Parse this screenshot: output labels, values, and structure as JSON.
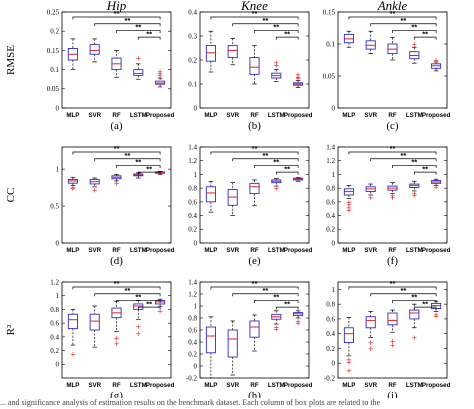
{
  "colors": {
    "box": "#2a2ad6",
    "median": "#e02020",
    "outlier": "#e02020",
    "whisker": "#000000"
  },
  "categories": [
    "MLP",
    "SVR",
    "RF",
    "LSTM",
    "Proposed"
  ],
  "column_titles": [
    "Hip",
    "Knee",
    "Ankle"
  ],
  "row_labels": [
    "RMSE",
    "CC",
    "R2"
  ],
  "significance_label": "**",
  "caption": "... and significance analysis of estimation results on the benchmark dataset. Each column of box plots are related to the",
  "chart_data": [
    {
      "type": "box",
      "panel_label": "(a)",
      "title": "Hip",
      "ylabel": "RMSE",
      "ylim": [
        0,
        0.25
      ],
      "yticks": [
        "0",
        "0.05",
        "0.1",
        "0.15",
        "0.2",
        "0.25"
      ],
      "boxes": [
        {
          "category": "MLP",
          "min": 0.1,
          "q1": 0.125,
          "median": 0.14,
          "q3": 0.155,
          "max": 0.18,
          "outliers": []
        },
        {
          "category": "SVR",
          "min": 0.12,
          "q1": 0.14,
          "median": 0.15,
          "q3": 0.165,
          "max": 0.18,
          "outliers": []
        },
        {
          "category": "RF",
          "min": 0.08,
          "q1": 0.1,
          "median": 0.115,
          "q3": 0.13,
          "max": 0.15,
          "outliers": []
        },
        {
          "category": "LSTM",
          "min": 0.075,
          "q1": 0.085,
          "median": 0.09,
          "q3": 0.1,
          "max": 0.115,
          "outliers": [
            0.13
          ]
        },
        {
          "category": "Proposed",
          "min": 0.055,
          "q1": 0.062,
          "median": 0.065,
          "q3": 0.07,
          "max": 0.078,
          "outliers": [
            0.085,
            0.09,
            0.095
          ]
        }
      ]
    },
    {
      "type": "box",
      "panel_label": "(b)",
      "title": "Knee",
      "ylabel": "",
      "ylim": [
        0,
        0.4
      ],
      "yticks": [
        "0",
        "0.1",
        "0.2",
        "0.3",
        "0.4"
      ],
      "boxes": [
        {
          "category": "MLP",
          "min": 0.15,
          "q1": 0.195,
          "median": 0.23,
          "q3": 0.26,
          "max": 0.32,
          "outliers": []
        },
        {
          "category": "SVR",
          "min": 0.18,
          "q1": 0.21,
          "median": 0.24,
          "q3": 0.26,
          "max": 0.29,
          "outliers": []
        },
        {
          "category": "RF",
          "min": 0.1,
          "q1": 0.14,
          "median": 0.17,
          "q3": 0.21,
          "max": 0.26,
          "outliers": []
        },
        {
          "category": "LSTM",
          "min": 0.11,
          "q1": 0.125,
          "median": 0.135,
          "q3": 0.145,
          "max": 0.16,
          "outliers": [
            0.18,
            0.19
          ]
        },
        {
          "category": "Proposed",
          "min": 0.085,
          "q1": 0.095,
          "median": 0.1,
          "q3": 0.105,
          "max": 0.115,
          "outliers": [
            0.125,
            0.13,
            0.14
          ]
        }
      ]
    },
    {
      "type": "box",
      "panel_label": "(c)",
      "title": "Ankle",
      "ylabel": "",
      "ylim": [
        0,
        0.15
      ],
      "yticks": [
        "0",
        "0.05",
        "0.1",
        "0.15"
      ],
      "boxes": [
        {
          "category": "MLP",
          "min": 0.095,
          "q1": 0.102,
          "median": 0.108,
          "q3": 0.115,
          "max": 0.12,
          "outliers": []
        },
        {
          "category": "SVR",
          "min": 0.085,
          "q1": 0.092,
          "median": 0.098,
          "q3": 0.105,
          "max": 0.12,
          "outliers": []
        },
        {
          "category": "RF",
          "min": 0.075,
          "q1": 0.085,
          "median": 0.092,
          "q3": 0.1,
          "max": 0.11,
          "outliers": []
        },
        {
          "category": "LSTM",
          "min": 0.07,
          "q1": 0.077,
          "median": 0.082,
          "q3": 0.088,
          "max": 0.095,
          "outliers": [
            0.1
          ]
        },
        {
          "category": "Proposed",
          "min": 0.058,
          "q1": 0.062,
          "median": 0.066,
          "q3": 0.069,
          "max": 0.072,
          "outliers": [
            0.075
          ]
        }
      ]
    },
    {
      "type": "box",
      "panel_label": "(d)",
      "title": "",
      "ylabel": "CC",
      "ylim": [
        0,
        1.3
      ],
      "yticks": [
        "0",
        "0.5",
        "1"
      ],
      "boxes": [
        {
          "category": "MLP",
          "min": 0.78,
          "q1": 0.81,
          "median": 0.84,
          "q3": 0.86,
          "max": 0.89,
          "outliers": [
            0.74,
            0.75
          ]
        },
        {
          "category": "SVR",
          "min": 0.76,
          "q1": 0.8,
          "median": 0.83,
          "q3": 0.86,
          "max": 0.88,
          "outliers": [
            0.72
          ]
        },
        {
          "category": "RF",
          "min": 0.84,
          "q1": 0.87,
          "median": 0.89,
          "q3": 0.91,
          "max": 0.93,
          "outliers": [
            0.81
          ]
        },
        {
          "category": "LSTM",
          "min": 0.88,
          "q1": 0.91,
          "median": 0.92,
          "q3": 0.935,
          "max": 0.95,
          "outliers": []
        },
        {
          "category": "Proposed",
          "min": 0.93,
          "q1": 0.945,
          "median": 0.955,
          "q3": 0.962,
          "max": 0.97,
          "outliers": []
        }
      ]
    },
    {
      "type": "box",
      "panel_label": "(e)",
      "title": "",
      "ylabel": "",
      "ylim": [
        0,
        1.4
      ],
      "yticks": [
        "0",
        "0.2",
        "0.4",
        "0.6",
        "0.8",
        "1",
        "1.2",
        "1.4"
      ],
      "boxes": [
        {
          "category": "MLP",
          "min": 0.45,
          "q1": 0.6,
          "median": 0.73,
          "q3": 0.82,
          "max": 0.9,
          "outliers": []
        },
        {
          "category": "SVR",
          "min": 0.4,
          "q1": 0.55,
          "median": 0.67,
          "q3": 0.78,
          "max": 0.88,
          "outliers": []
        },
        {
          "category": "RF",
          "min": 0.55,
          "q1": 0.72,
          "median": 0.82,
          "q3": 0.87,
          "max": 0.92,
          "outliers": []
        },
        {
          "category": "LSTM",
          "min": 0.83,
          "q1": 0.88,
          "median": 0.9,
          "q3": 0.92,
          "max": 0.94,
          "outliers": [
            0.8
          ]
        },
        {
          "category": "Proposed",
          "min": 0.9,
          "q1": 0.92,
          "median": 0.935,
          "q3": 0.945,
          "max": 0.955,
          "outliers": []
        }
      ]
    },
    {
      "type": "box",
      "panel_label": "(f)",
      "title": "",
      "ylabel": "",
      "ylim": [
        0,
        1.4
      ],
      "yticks": [
        "0",
        "0.2",
        "0.4",
        "0.6",
        "0.8",
        "1",
        "1.2",
        "1.4"
      ],
      "boxes": [
        {
          "category": "MLP",
          "min": 0.65,
          "q1": 0.7,
          "median": 0.75,
          "q3": 0.79,
          "max": 0.84,
          "outliers": [
            0.48,
            0.52,
            0.56,
            0.6
          ]
        },
        {
          "category": "SVR",
          "min": 0.7,
          "q1": 0.75,
          "median": 0.79,
          "q3": 0.82,
          "max": 0.86,
          "outliers": [
            0.66
          ]
        },
        {
          "category": "RF",
          "min": 0.72,
          "q1": 0.77,
          "median": 0.8,
          "q3": 0.83,
          "max": 0.88,
          "outliers": [
            0.66,
            0.69
          ]
        },
        {
          "category": "LSTM",
          "min": 0.76,
          "q1": 0.81,
          "median": 0.84,
          "q3": 0.86,
          "max": 0.9,
          "outliers": [
            0.7,
            0.73
          ]
        },
        {
          "category": "Proposed",
          "min": 0.84,
          "q1": 0.87,
          "median": 0.89,
          "q3": 0.91,
          "max": 0.93,
          "outliers": [
            0.82
          ]
        }
      ]
    },
    {
      "type": "box",
      "panel_label": "(g)",
      "title": "",
      "ylabel": "R²",
      "ylim": [
        -0.2,
        1.2
      ],
      "yticks": [
        "0",
        "0.2",
        "0.4",
        "0.6",
        "0.8",
        "1",
        "1.2"
      ],
      "boxes": [
        {
          "category": "MLP",
          "min": 0.28,
          "q1": 0.52,
          "median": 0.65,
          "q3": 0.73,
          "max": 0.8,
          "outliers": [
            0.15
          ]
        },
        {
          "category": "SVR",
          "min": 0.25,
          "q1": 0.5,
          "median": 0.63,
          "q3": 0.73,
          "max": 0.85,
          "outliers": []
        },
        {
          "category": "RF",
          "min": 0.48,
          "q1": 0.68,
          "median": 0.75,
          "q3": 0.82,
          "max": 0.92,
          "outliers": [
            0.3,
            0.38
          ]
        },
        {
          "category": "LSTM",
          "min": 0.65,
          "q1": 0.8,
          "median": 0.85,
          "q3": 0.88,
          "max": 0.93,
          "outliers": [
            0.45,
            0.55
          ]
        },
        {
          "category": "Proposed",
          "min": 0.84,
          "q1": 0.88,
          "median": 0.91,
          "q3": 0.93,
          "max": 0.95,
          "outliers": [
            0.78
          ]
        }
      ]
    },
    {
      "type": "box",
      "panel_label": "(h)",
      "title": "",
      "ylabel": "",
      "ylim": [
        -0.2,
        1.4
      ],
      "yticks": [
        "-0.2",
        "0",
        "0.2",
        "0.4",
        "0.6",
        "0.8",
        "1",
        "1.2",
        "1.4"
      ],
      "boxes": [
        {
          "category": "MLP",
          "min": -0.2,
          "q1": 0.22,
          "median": 0.5,
          "q3": 0.65,
          "max": 0.82,
          "outliers": []
        },
        {
          "category": "SVR",
          "min": -0.15,
          "q1": 0.15,
          "median": 0.45,
          "q3": 0.6,
          "max": 0.75,
          "outliers": []
        },
        {
          "category": "RF",
          "min": 0.25,
          "q1": 0.48,
          "median": 0.65,
          "q3": 0.75,
          "max": 0.85,
          "outliers": []
        },
        {
          "category": "LSTM",
          "min": 0.7,
          "q1": 0.78,
          "median": 0.82,
          "q3": 0.86,
          "max": 0.92,
          "outliers": [
            0.62,
            0.65
          ]
        },
        {
          "category": "Proposed",
          "min": 0.8,
          "q1": 0.84,
          "median": 0.87,
          "q3": 0.89,
          "max": 0.92,
          "outliers": [
            0.72,
            0.75
          ]
        }
      ]
    },
    {
      "type": "box",
      "panel_label": "(i)",
      "title": "",
      "ylabel": "",
      "ylim": [
        -0.2,
        1.1
      ],
      "yticks": [
        "-0.2",
        "0",
        "0.2",
        "0.4",
        "0.6",
        "0.8",
        "1"
      ],
      "boxes": [
        {
          "category": "MLP",
          "min": 0.1,
          "q1": 0.28,
          "median": 0.4,
          "q3": 0.48,
          "max": 0.62,
          "outliers": [
            -0.1,
            0.02,
            0.05
          ]
        },
        {
          "category": "SVR",
          "min": 0.35,
          "q1": 0.48,
          "median": 0.58,
          "q3": 0.63,
          "max": 0.7,
          "outliers": [
            0.2,
            0.28
          ]
        },
        {
          "category": "RF",
          "min": 0.42,
          "q1": 0.52,
          "median": 0.58,
          "q3": 0.68,
          "max": 0.72,
          "outliers": [
            0.25,
            0.3
          ]
        },
        {
          "category": "LSTM",
          "min": 0.48,
          "q1": 0.6,
          "median": 0.68,
          "q3": 0.72,
          "max": 0.8,
          "outliers": [
            0.35
          ]
        },
        {
          "category": "Proposed",
          "min": 0.7,
          "q1": 0.74,
          "median": 0.78,
          "q3": 0.81,
          "max": 0.84,
          "outliers": [
            0.64,
            0.66
          ]
        }
      ]
    }
  ]
}
